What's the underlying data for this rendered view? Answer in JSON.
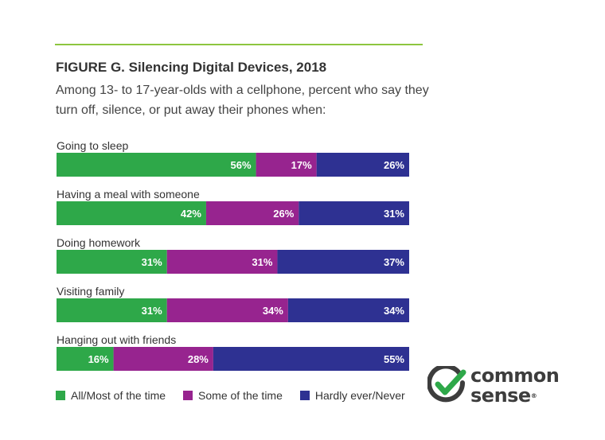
{
  "figure": {
    "title": "FIGURE G. Silencing Digital Devices, 2018",
    "subtitle": "Among 13- to 17-year-olds with a cellphone, percent who say they turn off, silence, or put away their phones when:"
  },
  "chart_data": {
    "type": "bar",
    "orientation": "horizontal",
    "stacked": true,
    "categories": [
      "Going to sleep",
      "Having a meal with someone",
      "Doing homework",
      "Visiting family",
      "Hanging out with friends"
    ],
    "series": [
      {
        "name": "All/Most of the time",
        "color": "#2ea849",
        "values": [
          56,
          42,
          31,
          31,
          16
        ]
      },
      {
        "name": "Some of the time",
        "color": "#97248f",
        "values": [
          17,
          26,
          31,
          34,
          28
        ]
      },
      {
        "name": "Hardly ever/Never",
        "color": "#2e3192",
        "values": [
          26,
          31,
          37,
          34,
          55
        ]
      }
    ],
    "value_suffix": "%",
    "grid": false,
    "legend_position": "bottom"
  },
  "logo": {
    "line1": "common",
    "line2": "sense",
    "mark": "®",
    "colors": {
      "check": "#2ea849",
      "ring": "#3d3d3d"
    }
  }
}
